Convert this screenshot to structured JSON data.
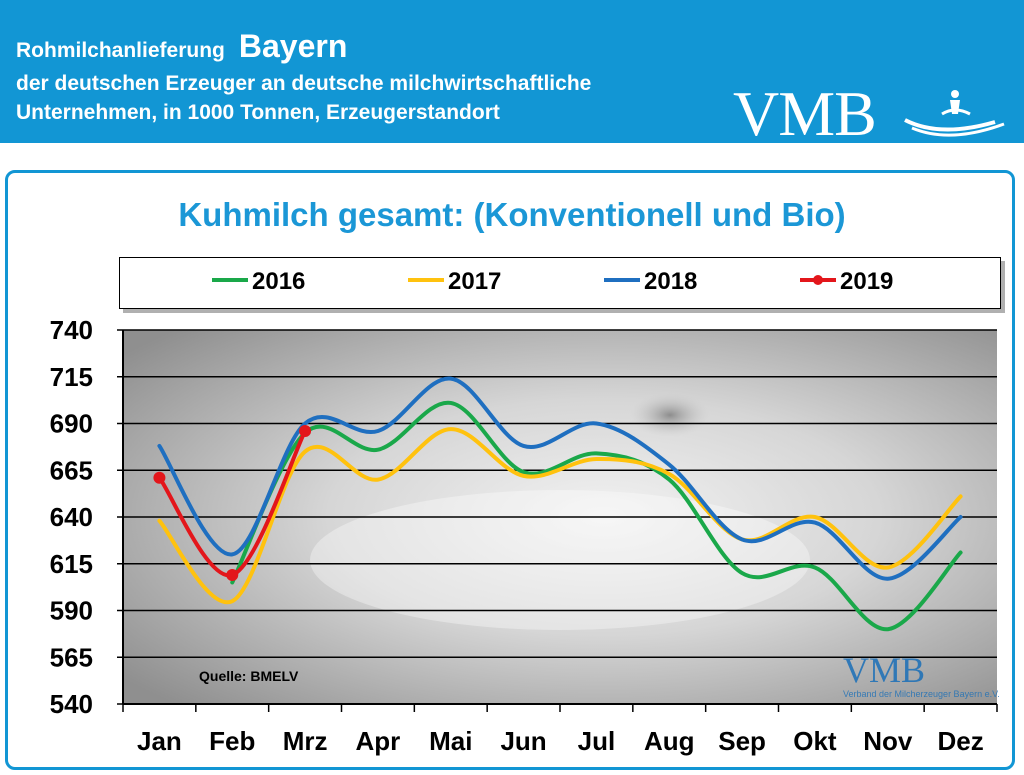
{
  "header": {
    "line1": "Rohmilchanlieferung",
    "region": "Bayern",
    "line2": "der deutschen Erzeuger an deutsche milchwirtschaftliche",
    "line3": "Unternehmen, in 1000 Tonnen, Erzeugerstandort",
    "logo": "VMB"
  },
  "watermark": {
    "logo": "VMB",
    "subtext": "Verband der Milcherzeuger Bayern e.V."
  },
  "colors": {
    "header_bg": "#1296d4",
    "title": "#1b97d6",
    "s2016": "#1aa84a",
    "s2017": "#ffc20e",
    "s2018": "#1f6fc0",
    "s2019": "#e3161b"
  },
  "chart_data": {
    "type": "line",
    "title": "Kuhmilch gesamt: (Konventionell und Bio)",
    "source": "Quelle:  BMELV",
    "categories": [
      "Jan",
      "Feb",
      "Mrz",
      "Apr",
      "Mai",
      "Jun",
      "Jul",
      "Aug",
      "Sep",
      "Okt",
      "Nov",
      "Dez"
    ],
    "ylim": [
      540,
      740
    ],
    "yticks": [
      740,
      715,
      690,
      665,
      640,
      615,
      590,
      565,
      540
    ],
    "series": [
      {
        "name": "2016",
        "color": "#1aa84a",
        "markers": false,
        "values": [
          null,
          605,
          685,
          676,
          701,
          664,
          674,
          660,
          610,
          613,
          580,
          621
        ]
      },
      {
        "name": "2017",
        "color": "#ffc20e",
        "markers": false,
        "values": [
          638,
          595,
          675,
          660,
          687,
          662,
          671,
          663,
          628,
          640,
          613,
          651
        ]
      },
      {
        "name": "2018",
        "color": "#1f6fc0",
        "markers": false,
        "values": [
          678,
          620,
          690,
          686,
          714,
          678,
          690,
          668,
          628,
          637,
          607,
          640
        ]
      },
      {
        "name": "2019",
        "color": "#e3161b",
        "markers": true,
        "values": [
          661,
          609,
          686,
          null,
          null,
          null,
          null,
          null,
          null,
          null,
          null,
          null
        ]
      }
    ]
  }
}
